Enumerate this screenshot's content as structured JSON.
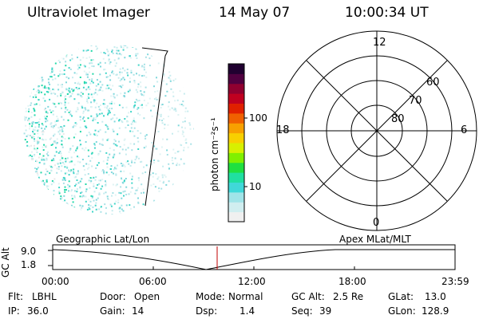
{
  "header": {
    "instrument": "Ultraviolet Imager",
    "date": "14 May 07",
    "time": "10:00:34 UT"
  },
  "colorbar": {
    "unit_label": "photon cm⁻²s⁻¹",
    "ticks": [
      "100",
      "10"
    ],
    "colors": [
      "#f0f0f0",
      "#d0eef0",
      "#a0e4e8",
      "#40d8d8",
      "#20e0a0",
      "#20e040",
      "#80f000",
      "#d8f000",
      "#f8d000",
      "#f8a000",
      "#f06000",
      "#e02000",
      "#c00020",
      "#900030",
      "#500040",
      "#200030"
    ]
  },
  "polar": {
    "mlt_labels": {
      "top": "12",
      "bottom": "0",
      "left": "18",
      "right": "6"
    },
    "lat_labels": [
      "60",
      "70",
      "80"
    ]
  },
  "altitude_plot": {
    "left_title": "Geographic Lat/Lon",
    "right_title": "Apex MLat/MLT",
    "axis_label": "GC Alt",
    "y_max": "9.0",
    "y_min": "1.8",
    "time_ticks": [
      "00:00",
      "06:00",
      "12:00",
      "18:00",
      "23:59"
    ],
    "current_time_marker_color": "#c00000"
  },
  "info": {
    "flt": {
      "label": "Flt:",
      "value": "LBHL"
    },
    "ip": {
      "label": "IP:",
      "value": "36.0"
    },
    "door": {
      "label": "Door:",
      "value": "Open"
    },
    "gain": {
      "label": "Gain:",
      "value": "14"
    },
    "mode": {
      "label": "Mode:",
      "value": "Normal"
    },
    "dsp": {
      "label": "Dsp:",
      "value": "1.4"
    },
    "gcalt": {
      "label": "GC Alt:",
      "value": "2.5 Re"
    },
    "seq": {
      "label": "Seq:",
      "value": "39"
    },
    "glat": {
      "label": "GLat:",
      "value": "13.0"
    },
    "glon": {
      "label": "GLon:",
      "value": "128.9"
    }
  }
}
